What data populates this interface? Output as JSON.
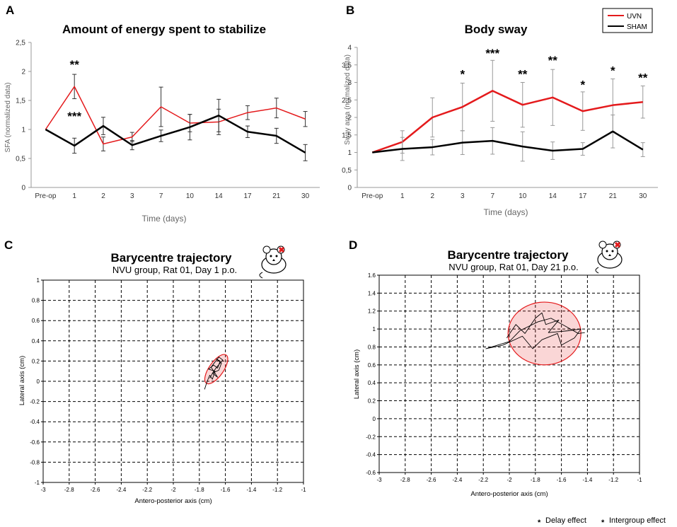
{
  "chart_data": [
    {
      "id": "A",
      "panel_label": "A",
      "type": "line",
      "title": "Amount of energy spent to stabilize",
      "xlabel": "Time (days)",
      "ylabel": "SFA (normalized data)",
      "ylim": [
        0,
        2.5
      ],
      "yticks": [
        "0",
        "0,5",
        "1",
        "1,5",
        "2",
        "2,5"
      ],
      "categories": [
        "Pre-op",
        "1",
        "2",
        "3",
        "7",
        "10",
        "14",
        "17",
        "21",
        "30"
      ],
      "series": [
        {
          "name": "UVN",
          "color": "#e41a1c",
          "values": [
            1.0,
            1.74,
            0.75,
            0.87,
            1.39,
            1.11,
            1.13,
            1.29,
            1.37,
            1.18
          ],
          "err": [
            0,
            0.21,
            0.12,
            0.08,
            0.34,
            0.15,
            0.22,
            0.12,
            0.17,
            0.13
          ]
        },
        {
          "name": "SHAM",
          "color": "#000000",
          "values": [
            1.0,
            0.72,
            1.06,
            0.73,
            0.89,
            1.04,
            1.24,
            0.96,
            0.89,
            0.6
          ],
          "err": [
            0,
            0.13,
            0.15,
            0.08,
            0.1,
            0.22,
            0.28,
            0.1,
            0.13,
            0.14
          ]
        }
      ],
      "annotations": [
        {
          "text": "**",
          "category": "1",
          "y": 2.05,
          "color": "#000000"
        },
        {
          "text": "***",
          "category": "1",
          "y": 1.16,
          "color": "#f4a33a"
        }
      ]
    },
    {
      "id": "B",
      "panel_label": "B",
      "type": "line",
      "title": "Body sway",
      "xlabel": "Time (days)",
      "ylabel": "Sway area (normalized data)",
      "ylim": [
        0,
        4
      ],
      "yticks": [
        "0",
        "0,5",
        "1",
        "1,5",
        "2",
        "2,5",
        "3",
        "3,5",
        "4"
      ],
      "categories": [
        "Pre-op",
        "1",
        "2",
        "3",
        "7",
        "10",
        "14",
        "17",
        "21",
        "30"
      ],
      "legend": [
        "UVN",
        "SHAM"
      ],
      "series": [
        {
          "name": "UVN",
          "color": "#e41a1c",
          "values": [
            1.0,
            1.3,
            2.0,
            2.3,
            2.76,
            2.36,
            2.57,
            2.18,
            2.35,
            2.44
          ],
          "err": [
            0,
            0.32,
            0.56,
            0.68,
            0.87,
            0.64,
            0.8,
            0.55,
            0.75,
            0.46
          ]
        },
        {
          "name": "SHAM",
          "color": "#000000",
          "values": [
            1.0,
            1.1,
            1.15,
            1.28,
            1.33,
            1.17,
            1.05,
            1.1,
            1.6,
            1.08
          ],
          "err": [
            0,
            0.33,
            0.22,
            0.34,
            0.38,
            0.42,
            0.25,
            0.18,
            0.47,
            0.2
          ]
        }
      ],
      "annotations": [
        {
          "text": "*",
          "category": "3",
          "y": 3.12
        },
        {
          "text": "***",
          "category": "7",
          "y": 3.72
        },
        {
          "text": "**",
          "category": "10",
          "y": 3.12
        },
        {
          "text": "**",
          "category": "14",
          "y": 3.52
        },
        {
          "text": "*",
          "category": "17",
          "y": 2.82
        },
        {
          "text": "*",
          "category": "21",
          "y": 3.22
        },
        {
          "text": "**",
          "category": "30",
          "y": 3.02
        }
      ]
    },
    {
      "id": "C",
      "panel_label": "C",
      "type": "scatter",
      "title": "Barycentre trajectory",
      "subtitle": "NVU group, Rat 01, Day 1 p.o.",
      "xlabel": "Antero-posterior axis (cm)",
      "ylabel": "Lateral axis (cm)",
      "xlim": [
        -3,
        -1
      ],
      "ylim": [
        -1,
        1
      ],
      "xticks": [
        "-3",
        "-2.8",
        "-2.6",
        "-2.4",
        "-2.2",
        "-2",
        "-1.8",
        "-1.6",
        "-1.4",
        "-1.2",
        "-1"
      ],
      "yticks": [
        "-1",
        "-0.8",
        "-0.6",
        "-0.4",
        "-0.2",
        "0",
        "0.2",
        "0.4",
        "0.6",
        "0.8",
        "1"
      ],
      "ellipse": {
        "cx": -1.67,
        "cy": 0.12,
        "rx": 0.055,
        "ry": 0.17,
        "rotation_deg": 35,
        "color": "#e41a1c"
      },
      "trajectory": [
        [
          -1.76,
          -0.08
        ],
        [
          -1.74,
          0.0
        ],
        [
          -1.72,
          0.06
        ],
        [
          -1.7,
          0.02
        ],
        [
          -1.68,
          0.1
        ],
        [
          -1.73,
          0.12
        ],
        [
          -1.69,
          0.16
        ],
        [
          -1.66,
          0.13
        ],
        [
          -1.64,
          0.2
        ],
        [
          -1.67,
          0.22
        ],
        [
          -1.63,
          0.18
        ],
        [
          -1.65,
          0.11
        ],
        [
          -1.7,
          0.08
        ],
        [
          -1.66,
          0.04
        ],
        [
          -1.71,
          0.14
        ],
        [
          -1.68,
          0.19
        ],
        [
          -1.65,
          0.24
        ],
        [
          -1.62,
          0.21
        ],
        [
          -1.66,
          0.15
        ],
        [
          -1.69,
          0.1
        ],
        [
          -1.72,
          0.03
        ]
      ]
    },
    {
      "id": "D",
      "panel_label": "D",
      "type": "scatter",
      "title": "Barycentre trajectory",
      "subtitle": "NVU group, Rat 01, Day 21 p.o.",
      "xlabel": "Antero-posterior axis (cm)",
      "ylabel": "Lateral axis (cm)",
      "xlim": [
        -3,
        -1
      ],
      "ylim": [
        -0.6,
        1.6
      ],
      "xticks": [
        "-3",
        "-2.8",
        "-2.6",
        "-2.4",
        "-2.2",
        "-2",
        "-1.8",
        "-1.6",
        "-1.4",
        "-1.2",
        "-1"
      ],
      "yticks": [
        "-0.6",
        "-0.4",
        "-0.2",
        "0",
        "0.2",
        "0.4",
        "0.6",
        "0.8",
        "1",
        "1.2",
        "1.4",
        "1.6"
      ],
      "ellipse": {
        "cx": -1.73,
        "cy": 0.95,
        "rx": 0.28,
        "ry": 0.35,
        "rotation_deg": 0,
        "color": "#e41a1c"
      },
      "trajectory": [
        [
          -2.02,
          0.9
        ],
        [
          -1.95,
          1.05
        ],
        [
          -1.88,
          0.95
        ],
        [
          -1.8,
          1.12
        ],
        [
          -1.75,
          1.18
        ],
        [
          -1.72,
          1.05
        ],
        [
          -1.62,
          1.1
        ],
        [
          -1.7,
          0.96
        ],
        [
          -1.55,
          0.98
        ],
        [
          -1.45,
          1.0
        ],
        [
          -1.5,
          0.9
        ],
        [
          -1.6,
          0.82
        ],
        [
          -1.63,
          0.95
        ],
        [
          -1.75,
          0.88
        ],
        [
          -1.82,
          0.78
        ],
        [
          -1.9,
          0.92
        ],
        [
          -2.05,
          0.82
        ],
        [
          -2.18,
          0.78
        ],
        [
          -2.0,
          0.86
        ],
        [
          -1.92,
          0.98
        ],
        [
          -1.78,
          1.08
        ],
        [
          -1.68,
          1.12
        ],
        [
          -1.58,
          1.04
        ],
        [
          -1.47,
          0.95
        ],
        [
          -1.42,
          0.96
        ]
      ]
    }
  ],
  "footer": {
    "delay_star": "*",
    "delay_label": "Delay effect",
    "intergroup_star": "*",
    "intergroup_label": "Intergroup effect",
    "delay_color": "#000000",
    "intergroup_color": "#f4a33a"
  }
}
